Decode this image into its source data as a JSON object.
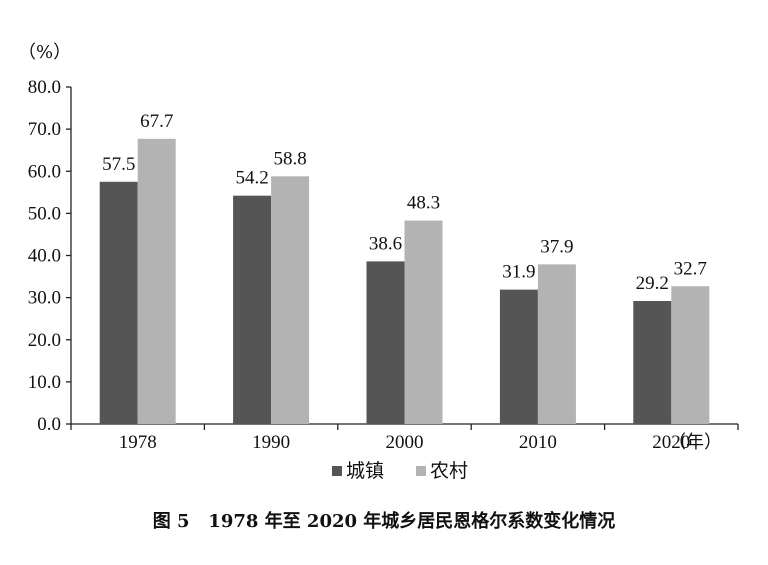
{
  "chart_data": {
    "type": "bar",
    "title": "图 5   1978 年至 2020 年城乡居民恩格尔系数变化情况",
    "ylabel": "（%）",
    "xlabel": "（年）",
    "categories": [
      "1978",
      "1990",
      "2000",
      "2010",
      "2020"
    ],
    "series": [
      {
        "name": "城镇",
        "values": [
          57.5,
          54.2,
          38.6,
          31.9,
          29.2
        ],
        "color": "#555555"
      },
      {
        "name": "农村",
        "values": [
          67.7,
          58.8,
          48.3,
          37.9,
          32.7
        ],
        "color": "#b3b3b3"
      }
    ],
    "ylim": [
      0,
      80
    ],
    "yticks": [
      "0.0",
      "10.0",
      "20.0",
      "30.0",
      "40.0",
      "50.0",
      "60.0",
      "70.0",
      "80.0"
    ],
    "grid": false,
    "legend": "bottom"
  }
}
